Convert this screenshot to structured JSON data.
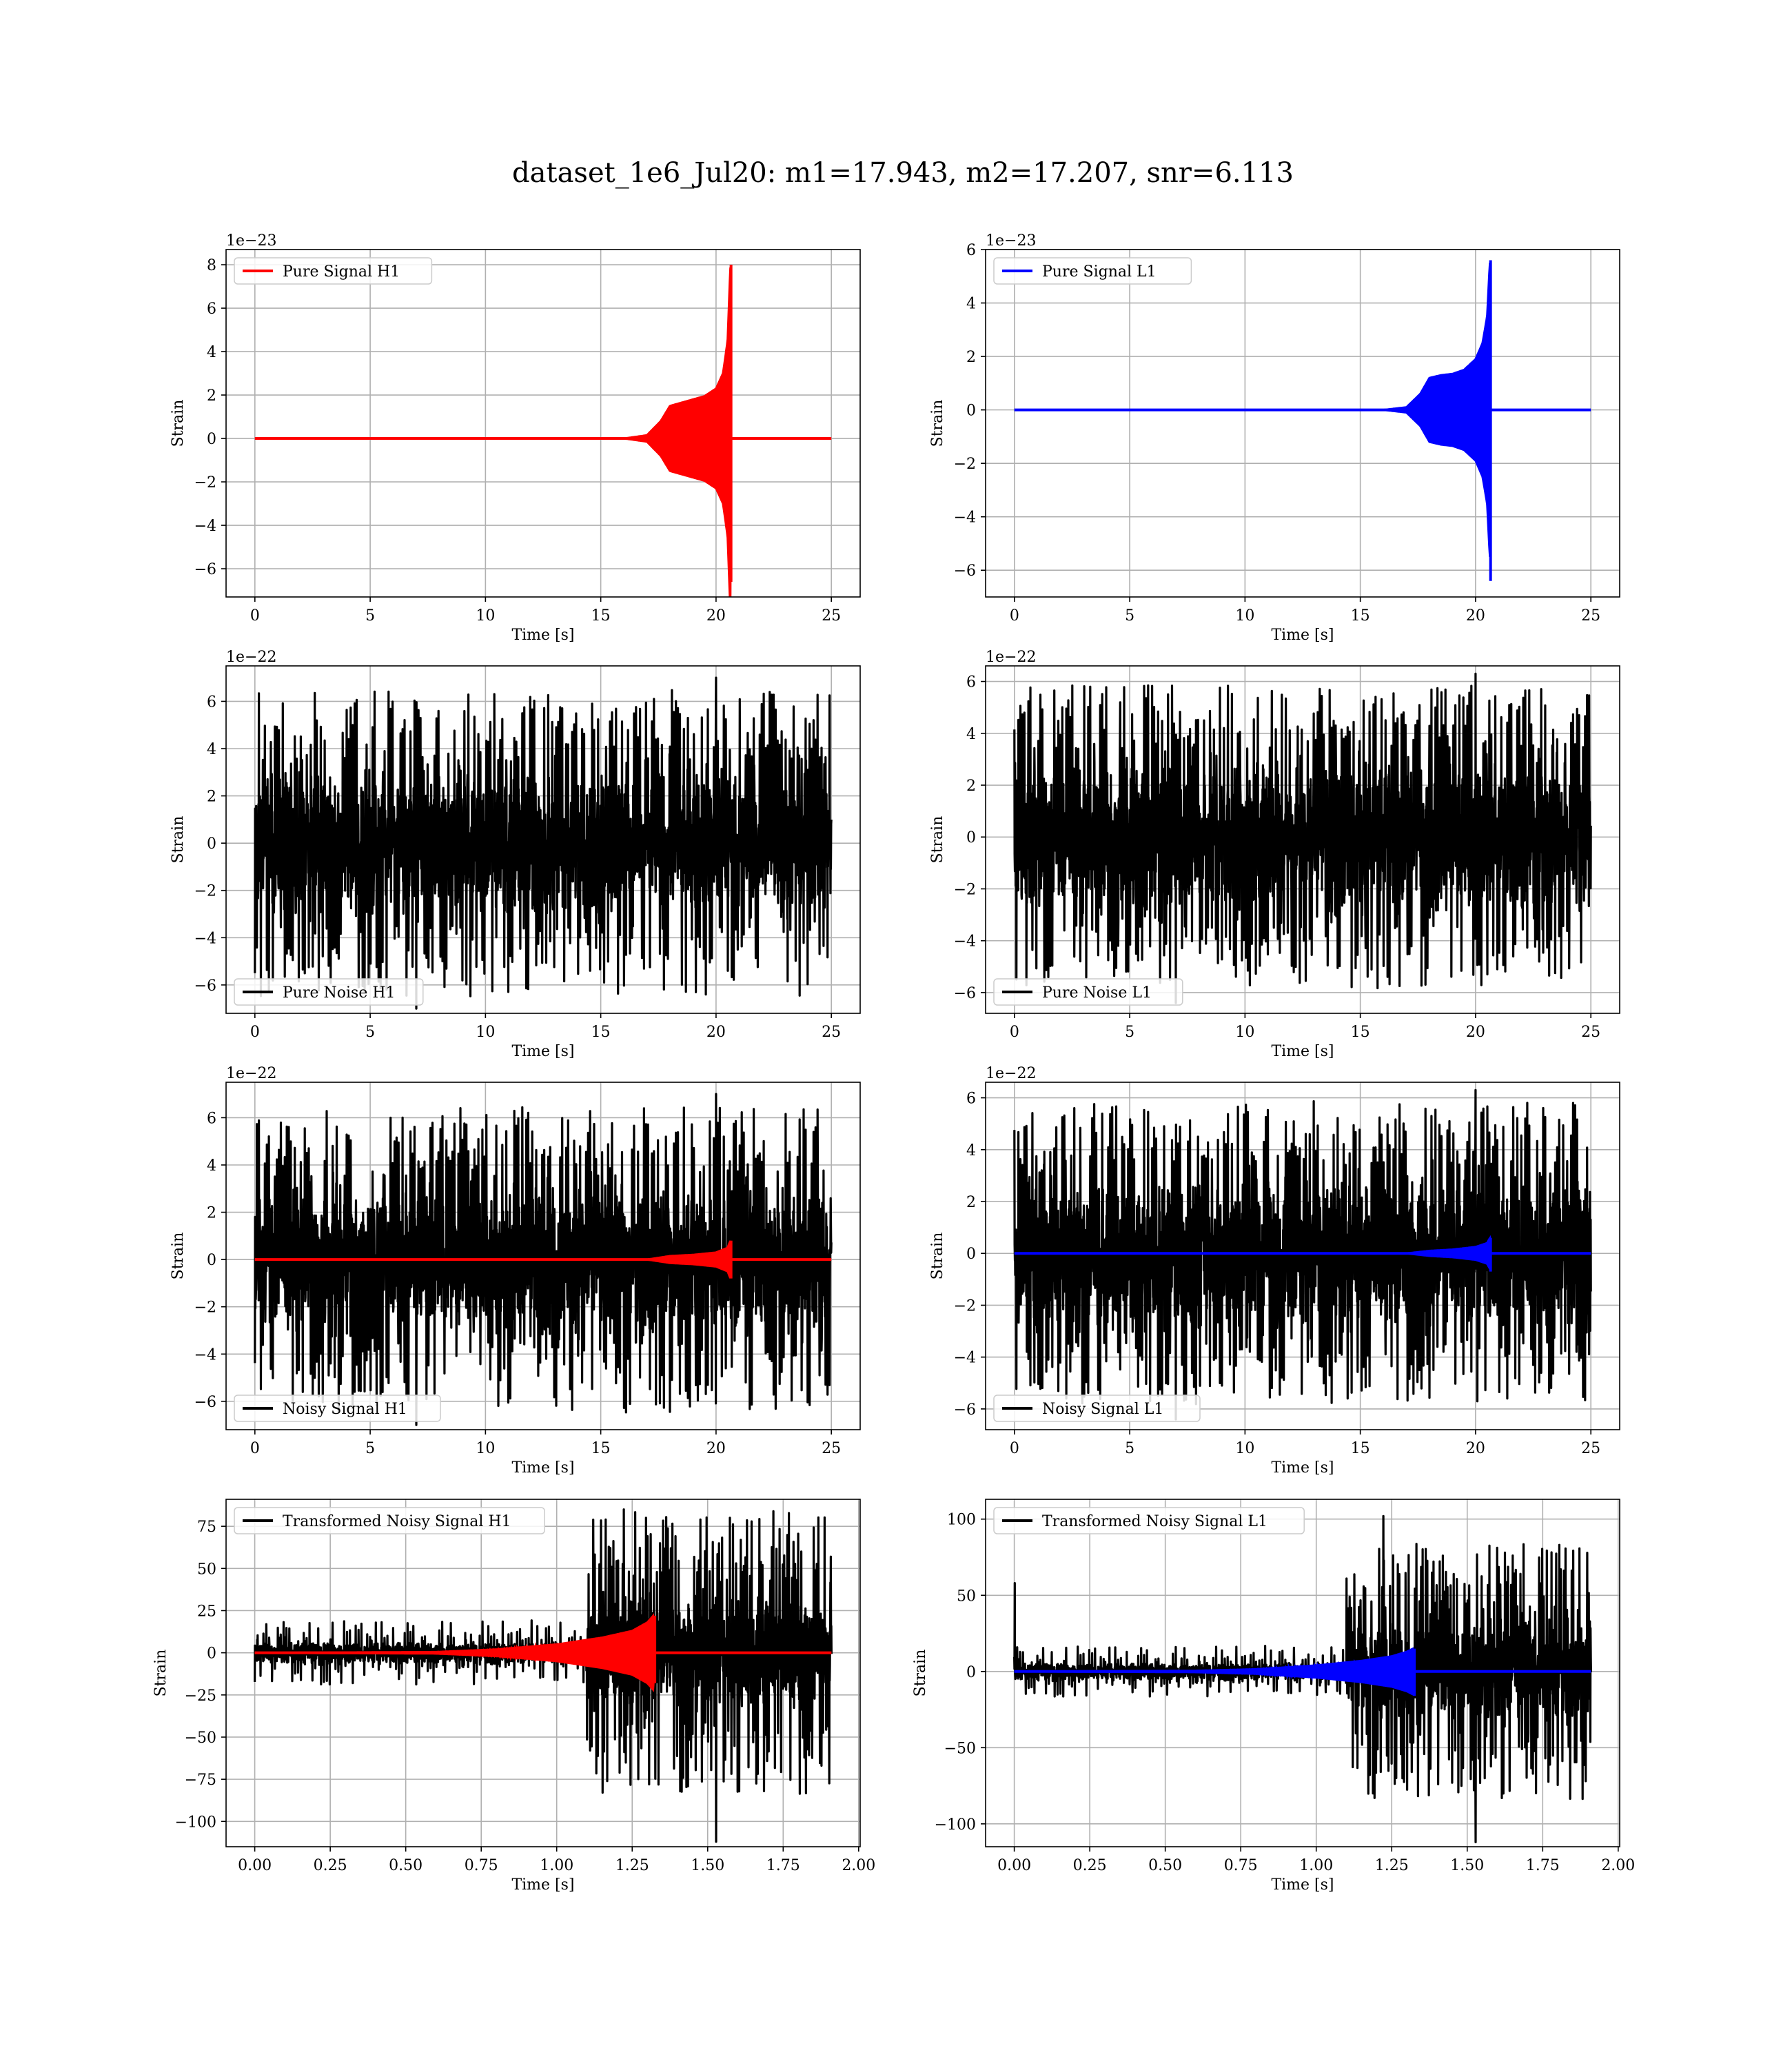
{
  "figure_title": "dataset_1e6_Jul20: m1=17.943, m2=17.207, snr=6.113",
  "colors": {
    "h1_signal": "#ff0000",
    "l1_signal": "#0000ff",
    "noise": "#000000",
    "grid": "#b0b0b0"
  },
  "chart_data": [
    {
      "id": "pure-signal-h1",
      "type": "line",
      "xlabel": "Time [s]",
      "ylabel": "Strain",
      "offset_text": "1e−23",
      "xlim": [
        -1.25,
        26.25
      ],
      "ylim": [
        -7.3,
        8.7
      ],
      "xticks": [
        0,
        5,
        10,
        15,
        20,
        25
      ],
      "xtick_labels": [
        "0",
        "5",
        "10",
        "15",
        "20",
        "25"
      ],
      "yticks": [
        -6,
        -4,
        -2,
        0,
        2,
        4,
        6,
        8
      ],
      "ytick_labels": [
        "−6",
        "−4",
        "−2",
        "0",
        "2",
        "4",
        "6",
        "8"
      ],
      "legend": {
        "position": "upper left"
      },
      "series": [
        {
          "name": "Pure Signal H1",
          "role": "chirp",
          "color": "#ff0000",
          "x_range": [
            0,
            25
          ],
          "envelope": [
            [
              0,
              0
            ],
            [
              16,
              0
            ],
            [
              17,
              0.15
            ],
            [
              17.6,
              0.8
            ],
            [
              18,
              1.5
            ],
            [
              18.5,
              1.65
            ],
            [
              19,
              1.8
            ],
            [
              19.5,
              1.95
            ],
            [
              20,
              2.3
            ],
            [
              20.3,
              3
            ],
            [
              20.5,
              4.5
            ],
            [
              20.62,
              8.0
            ],
            [
              20.68,
              -6.6
            ],
            [
              20.75,
              0
            ],
            [
              25,
              0
            ]
          ],
          "peak": 8.0,
          "trough": -6.6,
          "merger_time": 20.65
        }
      ]
    },
    {
      "id": "pure-signal-l1",
      "type": "line",
      "xlabel": "Time [s]",
      "ylabel": "Strain",
      "offset_text": "1e−23",
      "xlim": [
        -1.25,
        26.25
      ],
      "ylim": [
        -7.0,
        6.0
      ],
      "xticks": [
        0,
        5,
        10,
        15,
        20,
        25
      ],
      "xtick_labels": [
        "0",
        "5",
        "10",
        "15",
        "20",
        "25"
      ],
      "yticks": [
        -6,
        -4,
        -2,
        0,
        2,
        4,
        6
      ],
      "ytick_labels": [
        "−6",
        "−4",
        "−2",
        "0",
        "2",
        "4",
        "6"
      ],
      "legend": {
        "position": "upper left"
      },
      "series": [
        {
          "name": "Pure Signal L1",
          "role": "chirp",
          "color": "#0000ff",
          "x_range": [
            0,
            25
          ],
          "envelope": [
            [
              0,
              0
            ],
            [
              16,
              0
            ],
            [
              17,
              0.1
            ],
            [
              17.6,
              0.6
            ],
            [
              18,
              1.2
            ],
            [
              18.5,
              1.3
            ],
            [
              19,
              1.35
            ],
            [
              19.5,
              1.5
            ],
            [
              20,
              1.9
            ],
            [
              20.3,
              2.5
            ],
            [
              20.5,
              3.5
            ],
            [
              20.62,
              5.6
            ],
            [
              20.68,
              -6.4
            ],
            [
              20.75,
              0
            ],
            [
              25,
              0
            ]
          ],
          "peak": 5.6,
          "trough": -6.4,
          "merger_time": 20.65
        }
      ]
    },
    {
      "id": "pure-noise-h1",
      "type": "line",
      "xlabel": "Time [s]",
      "ylabel": "Strain",
      "offset_text": "1e−22",
      "xlim": [
        -1.25,
        26.25
      ],
      "ylim": [
        -7.2,
        7.5
      ],
      "xticks": [
        0,
        5,
        10,
        15,
        20,
        25
      ],
      "xtick_labels": [
        "0",
        "5",
        "10",
        "15",
        "20",
        "25"
      ],
      "yticks": [
        -6,
        -4,
        -2,
        0,
        2,
        4,
        6
      ],
      "ytick_labels": [
        "−6",
        "−4",
        "−2",
        "0",
        "2",
        "4",
        "6"
      ],
      "legend": {
        "position": "lower left"
      },
      "series": [
        {
          "name": "Pure Noise H1",
          "role": "noise",
          "color": "#000000",
          "x_range": [
            0,
            25
          ],
          "band": 3.5,
          "max": 7.0,
          "min": -7.0
        }
      ]
    },
    {
      "id": "pure-noise-l1",
      "type": "line",
      "xlabel": "Time [s]",
      "ylabel": "Strain",
      "offset_text": "1e−22",
      "xlim": [
        -1.25,
        26.25
      ],
      "ylim": [
        -6.8,
        6.6
      ],
      "xticks": [
        0,
        5,
        10,
        15,
        20,
        25
      ],
      "xtick_labels": [
        "0",
        "5",
        "10",
        "15",
        "20",
        "25"
      ],
      "yticks": [
        -6,
        -4,
        -2,
        0,
        2,
        4,
        6
      ],
      "ytick_labels": [
        "−6",
        "−4",
        "−2",
        "0",
        "2",
        "4",
        "6"
      ],
      "legend": {
        "position": "lower left"
      },
      "series": [
        {
          "name": "Pure Noise L1",
          "role": "noise",
          "color": "#000000",
          "x_range": [
            0,
            25
          ],
          "band": 3.4,
          "max": 6.3,
          "min": -6.4
        }
      ]
    },
    {
      "id": "noisy-signal-h1",
      "type": "line",
      "xlabel": "Time [s]",
      "ylabel": "Strain",
      "offset_text": "1e−22",
      "xlim": [
        -1.25,
        26.25
      ],
      "ylim": [
        -7.2,
        7.5
      ],
      "xticks": [
        0,
        5,
        10,
        15,
        20,
        25
      ],
      "xtick_labels": [
        "0",
        "5",
        "10",
        "15",
        "20",
        "25"
      ],
      "yticks": [
        -6,
        -4,
        -2,
        0,
        2,
        4,
        6
      ],
      "ytick_labels": [
        "−6",
        "−4",
        "−2",
        "0",
        "2",
        "4",
        "6"
      ],
      "legend": {
        "position": "lower left"
      },
      "series": [
        {
          "name": "Noisy Signal H1",
          "role": "noise",
          "color": "#000000",
          "x_range": [
            0,
            25
          ],
          "band": 3.5,
          "max": 7.0,
          "min": -7.0
        },
        {
          "role": "chirp",
          "color": "#ff0000",
          "x_range": [
            0,
            25
          ],
          "envelope": [
            [
              0,
              0
            ],
            [
              17,
              0
            ],
            [
              18,
              0.15
            ],
            [
              19,
              0.2
            ],
            [
              20,
              0.3
            ],
            [
              20.5,
              0.5
            ],
            [
              20.62,
              0.8
            ],
            [
              20.68,
              -0.8
            ],
            [
              20.75,
              0
            ],
            [
              25,
              0
            ]
          ],
          "peak": 0.8,
          "trough": -0.8,
          "merger_time": 20.65
        }
      ]
    },
    {
      "id": "noisy-signal-l1",
      "type": "line",
      "xlabel": "Time [s]",
      "ylabel": "Strain",
      "offset_text": "1e−22",
      "xlim": [
        -1.25,
        26.25
      ],
      "ylim": [
        -6.8,
        6.6
      ],
      "xticks": [
        0,
        5,
        10,
        15,
        20,
        25
      ],
      "xtick_labels": [
        "0",
        "5",
        "10",
        "15",
        "20",
        "25"
      ],
      "yticks": [
        -6,
        -4,
        -2,
        0,
        2,
        4,
        6
      ],
      "ytick_labels": [
        "−6",
        "−4",
        "−2",
        "0",
        "2",
        "4",
        "6"
      ],
      "legend": {
        "position": "lower left"
      },
      "series": [
        {
          "name": "Noisy Signal L1",
          "role": "noise",
          "color": "#000000",
          "x_range": [
            0,
            25
          ],
          "band": 3.4,
          "max": 6.3,
          "min": -6.4
        },
        {
          "role": "chirp",
          "color": "#0000ff",
          "x_range": [
            0,
            25
          ],
          "envelope": [
            [
              0,
              0
            ],
            [
              17,
              0
            ],
            [
              18,
              0.1
            ],
            [
              19,
              0.15
            ],
            [
              20,
              0.25
            ],
            [
              20.5,
              0.4
            ],
            [
              20.62,
              0.6
            ],
            [
              20.68,
              -0.7
            ],
            [
              20.75,
              0
            ],
            [
              25,
              0
            ]
          ],
          "peak": 0.6,
          "trough": -0.7,
          "merger_time": 20.65
        }
      ]
    },
    {
      "id": "transformed-noisy-signal-h1",
      "type": "line",
      "xlabel": "Time [s]",
      "ylabel": "Strain",
      "offset_text": "",
      "xlim": [
        -0.095,
        2.005
      ],
      "ylim": [
        -115,
        91
      ],
      "xticks": [
        0,
        0.25,
        0.5,
        0.75,
        1.0,
        1.25,
        1.5,
        1.75,
        2.0
      ],
      "xtick_labels": [
        "0.00",
        "0.25",
        "0.50",
        "0.75",
        "1.00",
        "1.25",
        "1.50",
        "1.75",
        "2.00"
      ],
      "yticks": [
        -100,
        -75,
        -50,
        -25,
        0,
        25,
        50,
        75
      ],
      "ytick_labels": [
        "−100",
        "−75",
        "−50",
        "−25",
        "0",
        "25",
        "50",
        "75"
      ],
      "legend": {
        "position": "upper left"
      },
      "series": [
        {
          "name": "Transformed Noisy Signal H1",
          "role": "transformed-noise",
          "color": "#000000",
          "x_range": [
            0,
            1.91
          ],
          "band_low": 8,
          "band_high": 40,
          "switch_time": 1.1,
          "max": 85,
          "min": -112
        },
        {
          "role": "chirp",
          "color": "#ff0000",
          "x_range": [
            0,
            1.91
          ],
          "envelope": [
            [
              0,
              0
            ],
            [
              0.6,
              0.5
            ],
            [
              0.8,
              2
            ],
            [
              1.0,
              5
            ],
            [
              1.15,
              9
            ],
            [
              1.25,
              13
            ],
            [
              1.3,
              18
            ],
            [
              1.32,
              22
            ],
            [
              1.33,
              -18
            ],
            [
              1.34,
              0
            ],
            [
              1.91,
              0
            ]
          ],
          "peak": 22,
          "trough": -18,
          "merger_time": 1.325
        }
      ]
    },
    {
      "id": "transformed-noisy-signal-l1",
      "type": "line",
      "xlabel": "Time [s]",
      "ylabel": "Strain",
      "offset_text": "",
      "xlim": [
        -0.095,
        2.005
      ],
      "ylim": [
        -115,
        113
      ],
      "xticks": [
        0,
        0.25,
        0.5,
        0.75,
        1.0,
        1.25,
        1.5,
        1.75,
        2.0
      ],
      "xtick_labels": [
        "0.00",
        "0.25",
        "0.50",
        "0.75",
        "1.00",
        "1.25",
        "1.50",
        "1.75",
        "2.00"
      ],
      "yticks": [
        -100,
        -50,
        0,
        50,
        100
      ],
      "ytick_labels": [
        "−100",
        "−50",
        "0",
        "50",
        "100"
      ],
      "legend": {
        "position": "upper left"
      },
      "series": [
        {
          "name": "Transformed Noisy Signal L1",
          "role": "transformed-noise",
          "color": "#000000",
          "x_range": [
            0,
            1.91
          ],
          "band_low": 7,
          "band_high": 40,
          "switch_time": 1.1,
          "max": 102,
          "min": -112,
          "spike_at_start": 58
        },
        {
          "role": "chirp",
          "color": "#0000ff",
          "x_range": [
            0,
            1.91
          ],
          "envelope": [
            [
              0,
              0
            ],
            [
              0.6,
              0.5
            ],
            [
              0.8,
              1.5
            ],
            [
              1.0,
              4
            ],
            [
              1.15,
              7
            ],
            [
              1.25,
              10
            ],
            [
              1.3,
              13
            ],
            [
              1.32,
              15
            ],
            [
              1.33,
              -16
            ],
            [
              1.34,
              0
            ],
            [
              1.91,
              0
            ]
          ],
          "peak": 15,
          "trough": -16,
          "merger_time": 1.325
        }
      ]
    }
  ]
}
